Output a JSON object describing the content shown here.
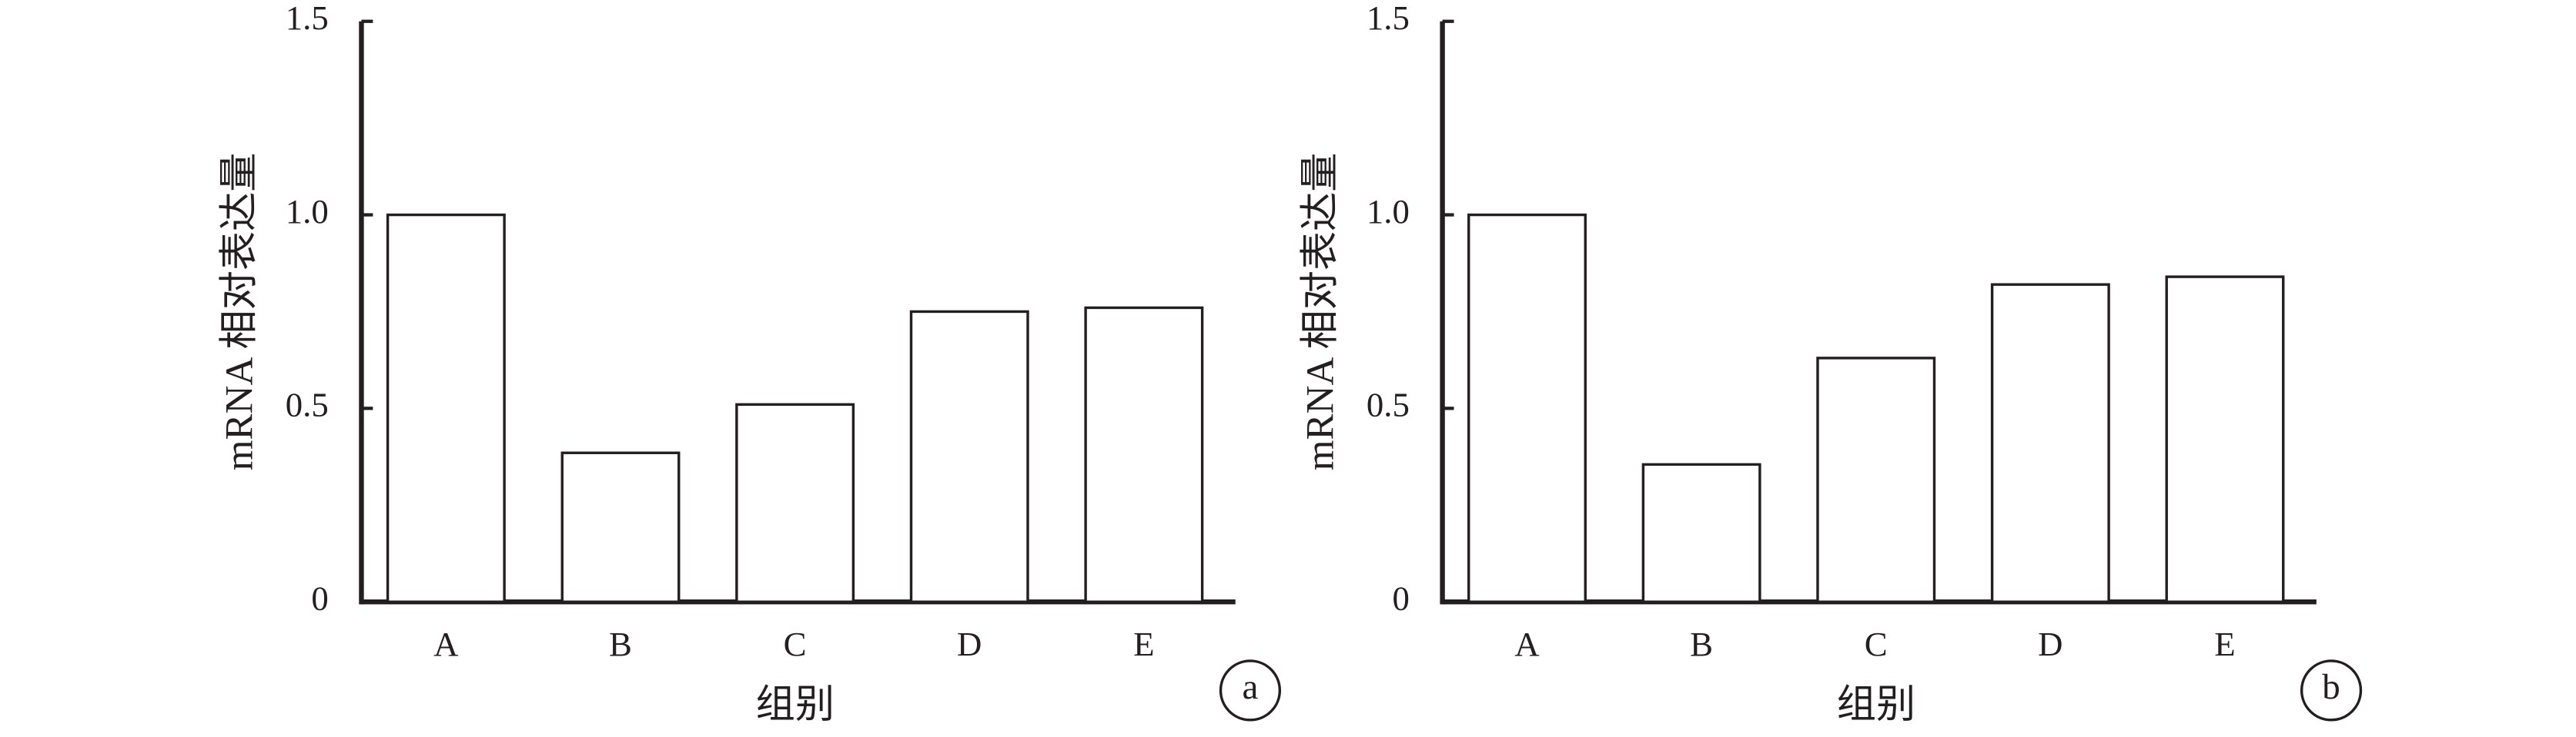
{
  "chart_data": [
    {
      "type": "bar",
      "panel_label": "a",
      "ylabel": "mRNA 相对表达量",
      "xlabel": "组别",
      "categories": [
        "A",
        "B",
        "C",
        "D",
        "E"
      ],
      "values": [
        1.0,
        0.385,
        0.51,
        0.75,
        0.76
      ],
      "color": "#ffffff",
      "ylim": [
        0,
        1.5
      ],
      "yticks": [
        0,
        0.5,
        {
          "value": 1,
          "label": "1.0"
        },
        1.5
      ]
    },
    {
      "type": "bar",
      "panel_label": "b",
      "ylabel": "mRNA 相对表达量",
      "xlabel": "组别",
      "categories": [
        "A",
        "B",
        "C",
        "D",
        "E"
      ],
      "values": [
        1.0,
        0.355,
        0.63,
        0.82,
        0.84
      ],
      "color": "#ffffff",
      "ylim": [
        0,
        1.5
      ],
      "yticks": [
        0,
        0.5,
        {
          "value": 1,
          "label": "1.0"
        },
        1.5
      ]
    }
  ]
}
